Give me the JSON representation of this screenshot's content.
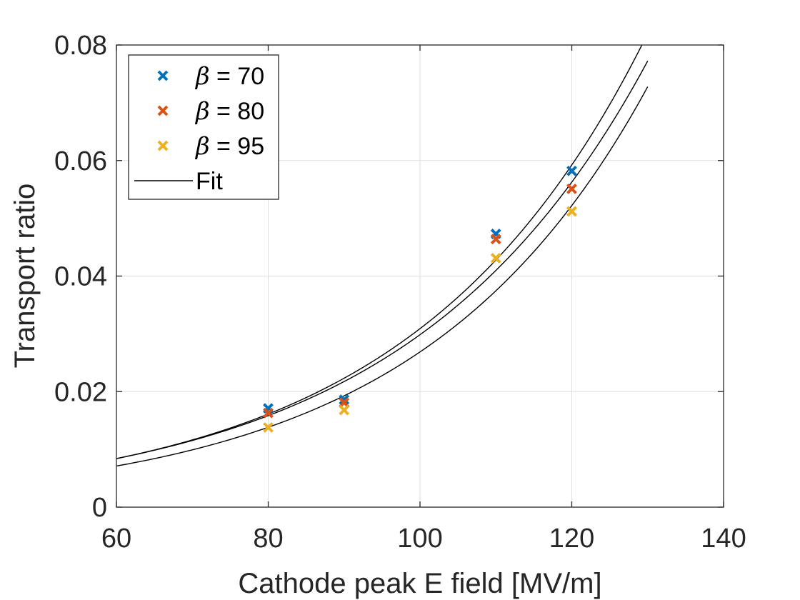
{
  "chart_data": {
    "type": "scatter",
    "title": "",
    "xlabel": "Cathode peak E field [MV/m]",
    "ylabel": "Transport ratio",
    "xlim": [
      60,
      140
    ],
    "ylim": [
      0,
      0.08
    ],
    "xticks": [
      60,
      80,
      100,
      120,
      140
    ],
    "yticks": [
      0,
      0.02,
      0.04,
      0.06,
      0.08
    ],
    "xtick_labels": [
      "60",
      "80",
      "100",
      "120",
      "140"
    ],
    "ytick_labels": [
      "0",
      "0.02",
      "0.04",
      "0.06",
      "0.08"
    ],
    "grid": true,
    "legend_position": "top-left",
    "series": [
      {
        "name": "β = 70",
        "beta_symbol": "β",
        "beta_value": "= 70",
        "marker": "x",
        "color": "#0072BD",
        "x": [
          80,
          90,
          110,
          120
        ],
        "y": [
          0.0171,
          0.0186,
          0.0473,
          0.0582
        ]
      },
      {
        "name": "β = 80",
        "beta_symbol": "β",
        "beta_value": "= 80",
        "marker": "x",
        "color": "#D95319",
        "x": [
          80,
          90,
          110,
          120
        ],
        "y": [
          0.0163,
          0.0181,
          0.0464,
          0.0551
        ]
      },
      {
        "name": "β = 95",
        "beta_symbol": "β",
        "beta_value": "= 95",
        "marker": "x",
        "color": "#EDB120",
        "x": [
          80,
          90,
          110,
          120
        ],
        "y": [
          0.0138,
          0.0168,
          0.0431,
          0.0512
        ]
      }
    ],
    "fits": {
      "name": "Fit",
      "color": "#000000",
      "x_range": [
        60,
        130
      ],
      "curves": [
        {
          "for": "β = 70",
          "a": 0.001193,
          "b": 0.032542
        },
        {
          "for": "β = 80",
          "a": 0.001255,
          "b": 0.03169
        },
        {
          "for": "β = 95",
          "a": 0.00097,
          "b": 0.033214
        }
      ]
    }
  }
}
